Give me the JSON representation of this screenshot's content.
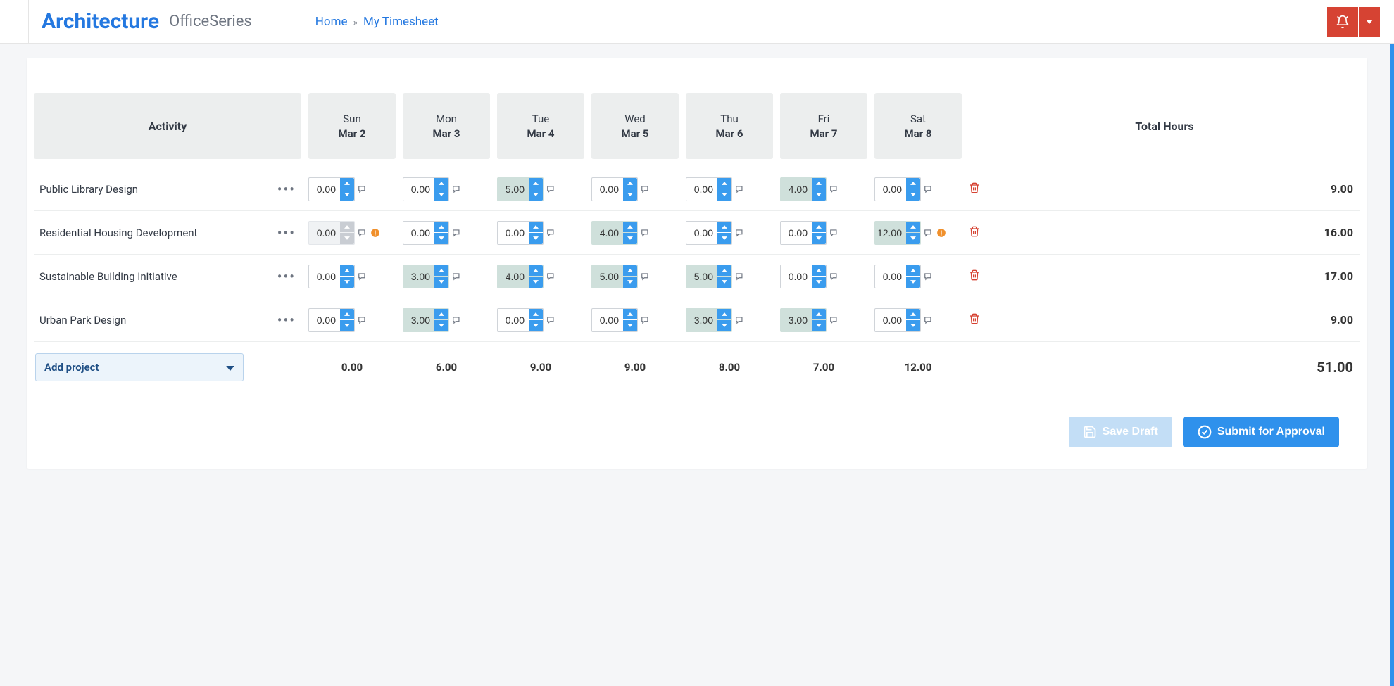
{
  "brand": {
    "main": "Architecture",
    "sub": "OfficeSeries"
  },
  "breadcrumb": {
    "home": "Home",
    "sep": "»",
    "current": "My Timesheet"
  },
  "colors": {
    "accent": "#2f91ec",
    "accentLight": "#3a9cee",
    "danger": "#d64333",
    "filledCell": "#cfe0db",
    "disabledCell": "#f0f2f4",
    "headerCell": "#eceeee",
    "linkBlue": "#2478e0",
    "addProjBg": "#ecf4fb",
    "addProjBorder": "#b9d3ec",
    "warnOrange": "#f0902c"
  },
  "columns": {
    "activity": "Activity",
    "days": [
      {
        "dow": "Sun",
        "date": "Mar 2"
      },
      {
        "dow": "Mon",
        "date": "Mar 3"
      },
      {
        "dow": "Tue",
        "date": "Mar 4"
      },
      {
        "dow": "Wed",
        "date": "Mar 5"
      },
      {
        "dow": "Thu",
        "date": "Mar 6"
      },
      {
        "dow": "Fri",
        "date": "Mar 7"
      },
      {
        "dow": "Sat",
        "date": "Mar 8"
      }
    ],
    "total": "Total Hours"
  },
  "rows": [
    {
      "name": "Public Library Design",
      "cells": [
        {
          "v": "0.00",
          "filled": false
        },
        {
          "v": "0.00",
          "filled": false
        },
        {
          "v": "5.00",
          "filled": true
        },
        {
          "v": "0.00",
          "filled": false
        },
        {
          "v": "0.00",
          "filled": false
        },
        {
          "v": "4.00",
          "filled": true
        },
        {
          "v": "0.00",
          "filled": false
        }
      ],
      "total": "9.00"
    },
    {
      "name": "Residential Housing Development",
      "cells": [
        {
          "v": "0.00",
          "filled": false,
          "disabled": true,
          "warn": true
        },
        {
          "v": "0.00",
          "filled": false
        },
        {
          "v": "0.00",
          "filled": false
        },
        {
          "v": "4.00",
          "filled": true
        },
        {
          "v": "0.00",
          "filled": false
        },
        {
          "v": "0.00",
          "filled": false
        },
        {
          "v": "12.00",
          "filled": true,
          "warn": true
        }
      ],
      "total": "16.00"
    },
    {
      "name": "Sustainable Building Initiative",
      "cells": [
        {
          "v": "0.00",
          "filled": false
        },
        {
          "v": "3.00",
          "filled": true
        },
        {
          "v": "4.00",
          "filled": true
        },
        {
          "v": "5.00",
          "filled": true
        },
        {
          "v": "5.00",
          "filled": true
        },
        {
          "v": "0.00",
          "filled": false
        },
        {
          "v": "0.00",
          "filled": false
        }
      ],
      "total": "17.00"
    },
    {
      "name": "Urban Park Design",
      "cells": [
        {
          "v": "0.00",
          "filled": false
        },
        {
          "v": "3.00",
          "filled": true
        },
        {
          "v": "0.00",
          "filled": false
        },
        {
          "v": "0.00",
          "filled": false
        },
        {
          "v": "3.00",
          "filled": true
        },
        {
          "v": "3.00",
          "filled": true
        },
        {
          "v": "0.00",
          "filled": false
        }
      ],
      "total": "9.00"
    }
  ],
  "dayTotals": [
    "0.00",
    "6.00",
    "9.00",
    "9.00",
    "8.00",
    "7.00",
    "12.00"
  ],
  "grandTotal": "51.00",
  "addProject": "Add project",
  "buttons": {
    "saveDraft": "Save Draft",
    "submit": "Submit for Approval"
  }
}
